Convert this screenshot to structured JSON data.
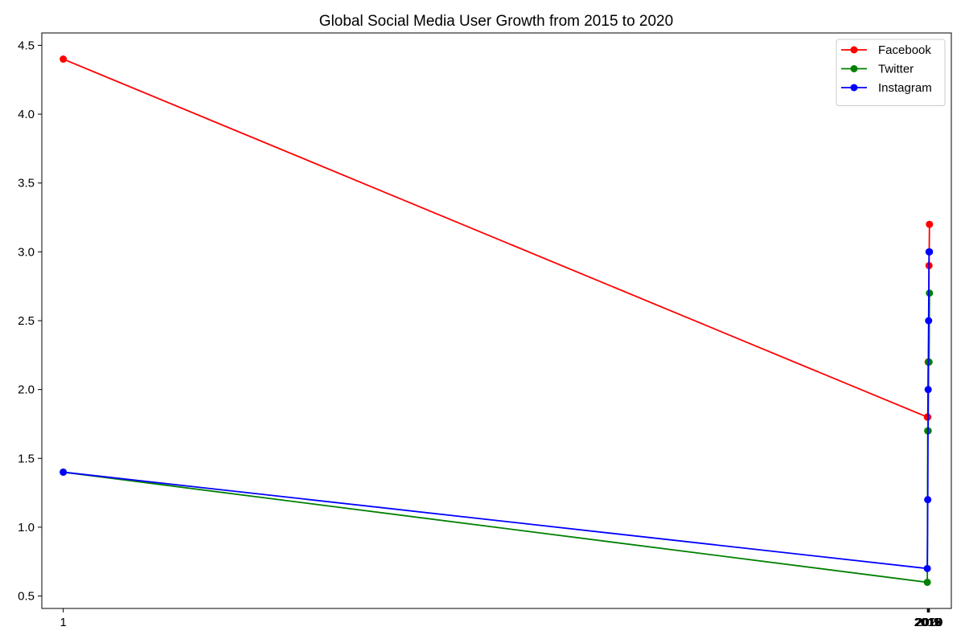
{
  "chart_data": {
    "type": "line",
    "title": "Global Social Media User Growth from 2015 to 2020",
    "xlabel": "",
    "ylabel": "",
    "x_ticks": [
      "1",
      "2015",
      "2016",
      "2017",
      "2018",
      "2019",
      "2020"
    ],
    "xlim": [
      -48.95,
      2070.95
    ],
    "ylim": [
      0.41,
      4.59
    ],
    "y_ticks": [
      "0.5",
      "1.0",
      "1.5",
      "2.0",
      "2.5",
      "3.0",
      "3.5",
      "4.0",
      "4.5"
    ],
    "grid": false,
    "legend_position": "top-right",
    "series": [
      {
        "name": "Facebook",
        "color": "#ff0000",
        "points": [
          [
            1,
            4.4
          ],
          [
            2015,
            1.8
          ],
          [
            2016,
            1.8
          ],
          [
            2017,
            2.2
          ],
          [
            2018,
            2.2
          ],
          [
            2019,
            2.9
          ],
          [
            2020,
            3.2
          ]
        ]
      },
      {
        "name": "Twitter",
        "color": "#008000",
        "points": [
          [
            1,
            1.4
          ],
          [
            2015,
            0.6
          ],
          [
            2016,
            1.7
          ],
          [
            2017,
            1.7
          ],
          [
            2018,
            2.2
          ],
          [
            2019,
            2.2
          ],
          [
            2020,
            2.7
          ]
        ]
      },
      {
        "name": "Instagram",
        "color": "#0000ff",
        "points": [
          [
            1,
            1.4
          ],
          [
            2015,
            0.7
          ],
          [
            2016,
            1.2
          ],
          [
            2017,
            2.0
          ],
          [
            2018,
            2.5
          ],
          [
            2019,
            3.0
          ],
          [
            2020,
            3.0
          ]
        ]
      }
    ]
  }
}
